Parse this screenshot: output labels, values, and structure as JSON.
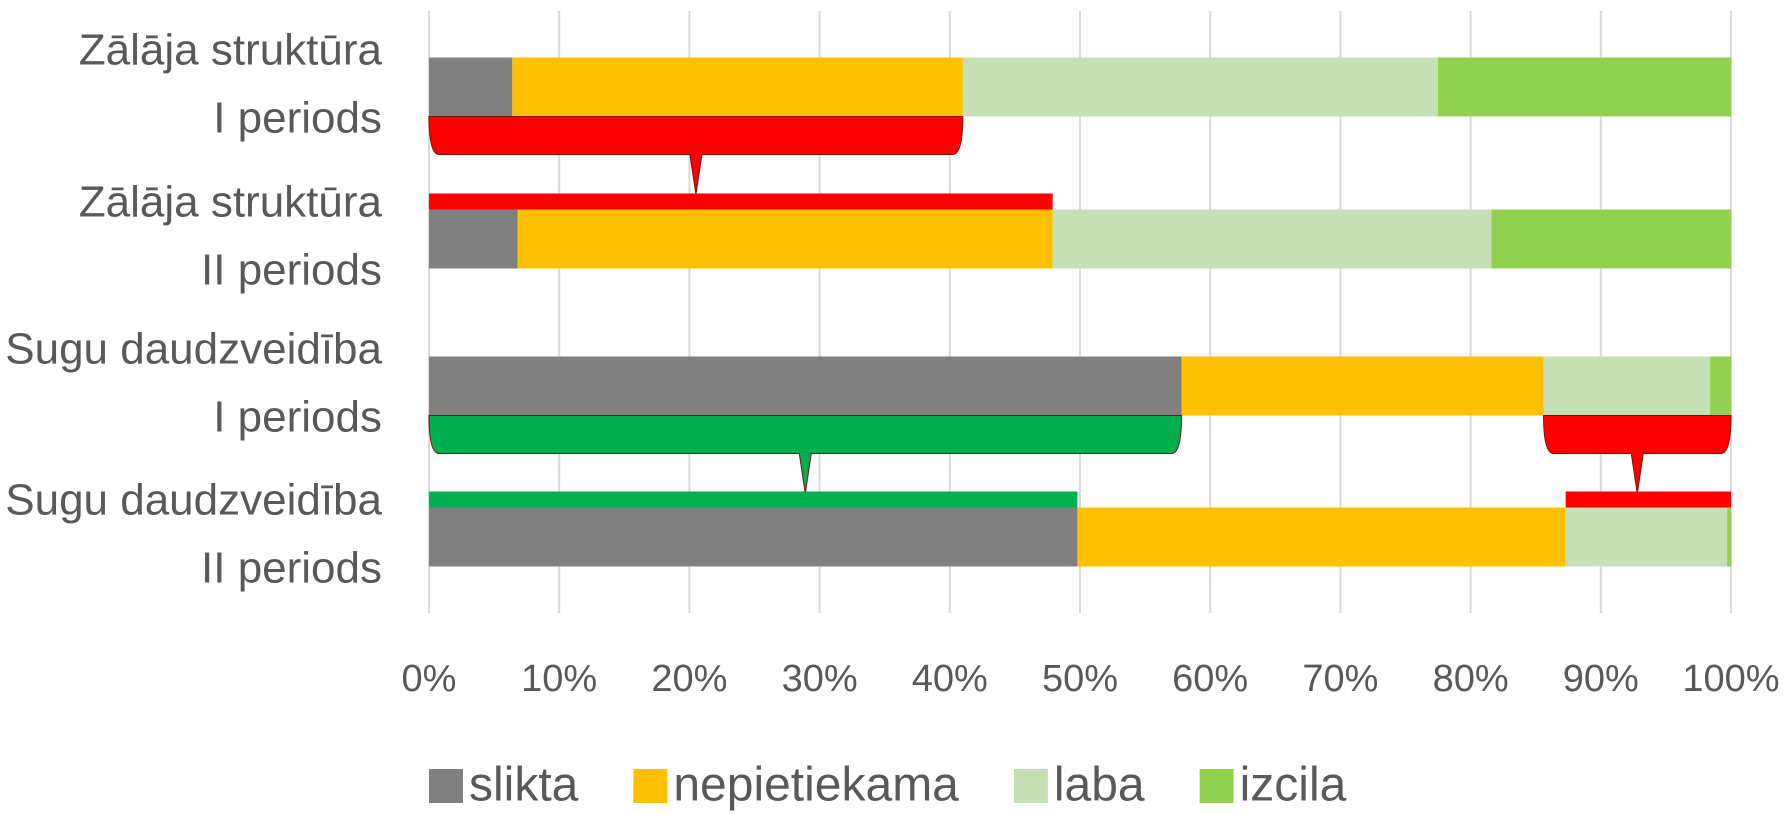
{
  "chart_data": {
    "type": "stacked_bar_horizontal",
    "categories": [
      [
        "Zālāja struktūra",
        "I periods"
      ],
      [
        "Zālāja struktūra",
        "II periods"
      ],
      [
        "Sugu daudzveidība",
        "I periods"
      ],
      [
        "Sugu daudzveidība",
        "II periods"
      ]
    ],
    "series": [
      {
        "name": "slikta",
        "color": "#808080",
        "values": [
          6.4,
          6.8,
          57.8,
          49.8
        ]
      },
      {
        "name": "nepietiekama",
        "color": "#ffc000",
        "values": [
          34.6,
          41.1,
          27.8,
          37.5
        ]
      },
      {
        "name": "laba",
        "color": "#c5e0b4",
        "values": [
          36.5,
          33.7,
          12.8,
          12.4
        ]
      },
      {
        "name": "izcila",
        "color": "#92d050",
        "values": [
          22.5,
          18.4,
          1.6,
          0.3
        ]
      }
    ],
    "xlim": [
      0,
      100
    ],
    "xticks": [
      {
        "value": 0,
        "label": "0%"
      },
      {
        "value": 10,
        "label": "10%"
      },
      {
        "value": 20,
        "label": "20%"
      },
      {
        "value": 30,
        "label": "30%"
      },
      {
        "value": 40,
        "label": "40%"
      },
      {
        "value": 50,
        "label": "50%"
      },
      {
        "value": 60,
        "label": "60%"
      },
      {
        "value": 70,
        "label": "70%"
      },
      {
        "value": 80,
        "label": "80%"
      },
      {
        "value": 90,
        "label": "90%"
      },
      {
        "value": 100,
        "label": "100%"
      }
    ],
    "grid": true,
    "legend": "bottom"
  }
}
